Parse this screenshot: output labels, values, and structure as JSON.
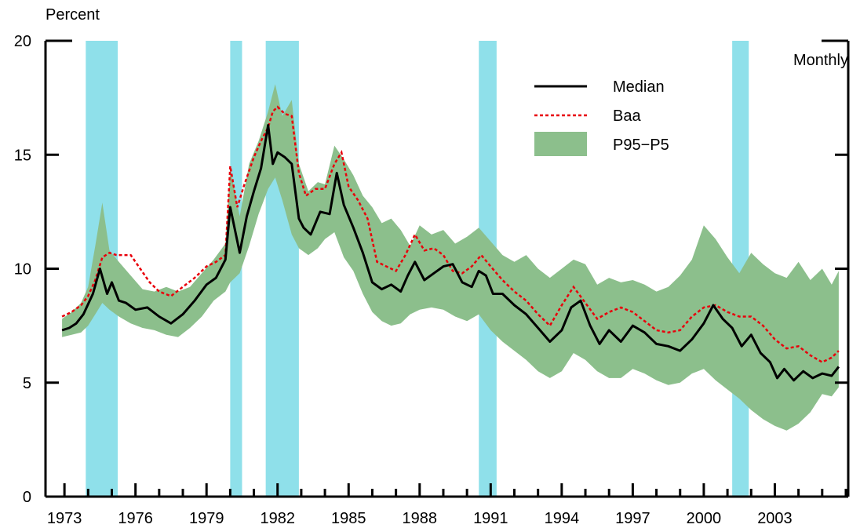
{
  "chart_data": {
    "type": "line",
    "y_unit_label": "Percent",
    "frequency_label": "Monthly",
    "xlim": [
      1972.2,
      2006.1
    ],
    "ylim": [
      0,
      20
    ],
    "y_ticks": [
      0,
      5,
      10,
      15,
      20
    ],
    "x_ticks": [
      1973,
      1976,
      1979,
      1982,
      1985,
      1988,
      1991,
      1994,
      1997,
      2000,
      2003
    ],
    "grid": false,
    "legend_position": "top-right",
    "colors": {
      "median": "#000000",
      "baa": "#e8000b",
      "band": "#8cbf8c",
      "recession": "#8fe0ea"
    },
    "recessions": [
      [
        1973.9,
        1975.25
      ],
      [
        1980.0,
        1980.5
      ],
      [
        1981.5,
        1982.9
      ],
      [
        1990.5,
        1991.25
      ],
      [
        2001.2,
        2001.9
      ]
    ],
    "series": [
      {
        "name": "Median",
        "style": "solid",
        "x": [
          1972.9,
          1973.2,
          1973.5,
          1973.8,
          1974.2,
          1974.5,
          1974.8,
          1975.0,
          1975.3,
          1975.6,
          1976.0,
          1976.5,
          1977.0,
          1977.5,
          1978.0,
          1978.5,
          1979.0,
          1979.4,
          1979.8,
          1980.0,
          1980.4,
          1980.7,
          1981.0,
          1981.3,
          1981.6,
          1981.8,
          1982.0,
          1982.3,
          1982.6,
          1982.9,
          1983.1,
          1983.4,
          1983.8,
          1984.2,
          1984.5,
          1984.8,
          1985.2,
          1985.6,
          1986.0,
          1986.4,
          1986.8,
          1987.2,
          1987.5,
          1987.8,
          1988.2,
          1988.6,
          1989.0,
          1989.4,
          1989.8,
          1990.2,
          1990.5,
          1990.8,
          1991.1,
          1991.5,
          1992.0,
          1992.5,
          1993.0,
          1993.5,
          1994.0,
          1994.4,
          1994.8,
          1995.2,
          1995.6,
          1996.0,
          1996.5,
          1997.0,
          1997.5,
          1998.0,
          1998.5,
          1999.0,
          1999.5,
          2000.0,
          2000.4,
          2000.8,
          2001.2,
          2001.6,
          2002.0,
          2002.4,
          2002.8,
          2003.1,
          2003.4,
          2003.8,
          2004.2,
          2004.6,
          2005.0,
          2005.4,
          2005.7
        ],
        "values": [
          7.3,
          7.4,
          7.6,
          8.0,
          8.9,
          10.0,
          8.9,
          9.4,
          8.6,
          8.5,
          8.2,
          8.3,
          7.9,
          7.6,
          8.0,
          8.6,
          9.3,
          9.6,
          10.4,
          12.7,
          10.7,
          12.3,
          13.4,
          14.4,
          16.3,
          14.6,
          15.1,
          14.9,
          14.6,
          12.2,
          11.8,
          11.5,
          12.5,
          12.4,
          14.2,
          12.8,
          11.8,
          10.7,
          9.4,
          9.1,
          9.3,
          9.0,
          9.7,
          10.3,
          9.5,
          9.8,
          10.1,
          10.2,
          9.4,
          9.2,
          9.9,
          9.7,
          8.9,
          8.9,
          8.4,
          8.0,
          7.4,
          6.8,
          7.3,
          8.3,
          8.6,
          7.5,
          6.7,
          7.3,
          6.8,
          7.5,
          7.2,
          6.7,
          6.6,
          6.4,
          6.9,
          7.6,
          8.4,
          7.8,
          7.4,
          6.6,
          7.1,
          6.3,
          5.9,
          5.2,
          5.6,
          5.1,
          5.5,
          5.2,
          5.4,
          5.3,
          5.7
        ]
      },
      {
        "name": "Baa",
        "style": "dotted",
        "x": [
          1972.9,
          1973.3,
          1973.7,
          1974.0,
          1974.3,
          1974.6,
          1974.9,
          1975.2,
          1975.5,
          1975.8,
          1976.2,
          1976.6,
          1977.0,
          1977.5,
          1978.0,
          1978.5,
          1979.0,
          1979.4,
          1979.8,
          1980.0,
          1980.3,
          1980.6,
          1981.0,
          1981.3,
          1981.6,
          1981.8,
          1982.0,
          1982.3,
          1982.6,
          1982.9,
          1983.2,
          1983.6,
          1984.0,
          1984.4,
          1984.7,
          1985.0,
          1985.4,
          1985.8,
          1986.2,
          1986.6,
          1987.0,
          1987.4,
          1987.8,
          1988.2,
          1988.6,
          1989.0,
          1989.4,
          1989.8,
          1990.2,
          1990.6,
          1991.0,
          1991.5,
          1992.0,
          1992.5,
          1993.0,
          1993.5,
          1994.0,
          1994.5,
          1995.0,
          1995.5,
          1996.0,
          1996.5,
          1997.0,
          1997.5,
          1998.0,
          1998.5,
          1999.0,
          1999.5,
          2000.0,
          2000.5,
          2001.0,
          2001.5,
          2002.0,
          2002.5,
          2003.0,
          2003.5,
          2004.0,
          2004.5,
          2005.0,
          2005.4,
          2005.7
        ],
        "values": [
          7.9,
          8.1,
          8.4,
          8.8,
          9.5,
          10.5,
          10.7,
          10.6,
          10.6,
          10.6,
          10.0,
          9.4,
          9.0,
          8.8,
          9.2,
          9.6,
          10.1,
          10.3,
          10.6,
          14.5,
          12.7,
          13.7,
          14.9,
          15.6,
          16.2,
          16.9,
          17.1,
          16.8,
          16.7,
          14.2,
          13.2,
          13.5,
          13.5,
          14.6,
          15.1,
          13.6,
          13.0,
          12.2,
          10.3,
          10.1,
          9.9,
          10.6,
          11.5,
          10.8,
          10.9,
          10.6,
          9.9,
          9.8,
          10.1,
          10.6,
          10.1,
          9.5,
          9.0,
          8.6,
          8.0,
          7.5,
          8.4,
          9.2,
          8.5,
          7.8,
          8.1,
          8.3,
          8.1,
          7.7,
          7.3,
          7.2,
          7.3,
          7.9,
          8.3,
          8.4,
          8.1,
          7.9,
          7.9,
          7.5,
          6.9,
          6.5,
          6.6,
          6.2,
          5.9,
          6.1,
          6.4
        ]
      },
      {
        "name": "P95−P5",
        "style": "band",
        "x": [
          1972.9,
          1973.3,
          1973.7,
          1974.0,
          1974.3,
          1974.6,
          1974.9,
          1975.3,
          1975.8,
          1976.3,
          1976.8,
          1977.3,
          1977.8,
          1978.3,
          1978.8,
          1979.3,
          1979.8,
          1980.0,
          1980.4,
          1980.8,
          1981.2,
          1981.6,
          1981.9,
          1982.2,
          1982.6,
          1982.9,
          1983.3,
          1983.7,
          1984.0,
          1984.4,
          1984.8,
          1985.2,
          1985.6,
          1986.0,
          1986.4,
          1986.8,
          1987.2,
          1987.6,
          1988.0,
          1988.5,
          1989.0,
          1989.5,
          1990.0,
          1990.5,
          1991.0,
          1991.5,
          1992.0,
          1992.5,
          1993.0,
          1993.5,
          1994.0,
          1994.5,
          1995.0,
          1995.5,
          1996.0,
          1996.5,
          1997.0,
          1997.5,
          1998.0,
          1998.5,
          1999.0,
          1999.5,
          2000.0,
          2000.5,
          2001.0,
          2001.5,
          2002.0,
          2002.5,
          2003.0,
          2003.5,
          2004.0,
          2004.5,
          2005.0,
          2005.4,
          2005.7
        ],
        "upper": [
          7.8,
          8.1,
          8.5,
          9.2,
          11.0,
          12.9,
          10.8,
          10.3,
          9.7,
          9.1,
          9.0,
          9.2,
          9.0,
          9.2,
          9.8,
          10.4,
          11.1,
          14.4,
          12.3,
          14.6,
          15.6,
          16.9,
          18.1,
          16.7,
          17.4,
          14.6,
          13.4,
          13.8,
          13.7,
          15.4,
          14.8,
          14.1,
          13.2,
          12.7,
          12.0,
          12.2,
          11.7,
          11.0,
          11.9,
          11.5,
          11.7,
          11.1,
          11.4,
          11.8,
          11.2,
          10.6,
          10.3,
          10.6,
          10.0,
          9.6,
          10.0,
          10.4,
          10.2,
          9.3,
          9.6,
          9.4,
          9.5,
          9.3,
          9.0,
          9.2,
          9.7,
          10.4,
          11.9,
          11.3,
          10.5,
          9.8,
          10.7,
          10.2,
          9.8,
          9.6,
          10.3,
          9.5,
          10.0,
          9.3,
          9.9
        ],
        "lower": [
          7.0,
          7.1,
          7.2,
          7.5,
          8.0,
          8.5,
          8.2,
          7.9,
          7.6,
          7.4,
          7.3,
          7.1,
          7.0,
          7.4,
          7.9,
          8.6,
          9.0,
          9.4,
          9.8,
          11.0,
          12.4,
          13.5,
          14.0,
          13.0,
          11.5,
          10.9,
          10.6,
          10.9,
          11.3,
          11.6,
          10.5,
          9.9,
          8.9,
          8.1,
          7.7,
          7.5,
          7.6,
          8.0,
          8.2,
          8.3,
          8.2,
          7.9,
          7.7,
          8.0,
          7.3,
          6.8,
          6.4,
          6.0,
          5.5,
          5.2,
          5.5,
          6.3,
          6.0,
          5.5,
          5.2,
          5.2,
          5.6,
          5.4,
          5.1,
          4.9,
          5.0,
          5.4,
          5.6,
          5.1,
          4.7,
          4.3,
          3.8,
          3.4,
          3.1,
          2.9,
          3.2,
          3.7,
          4.5,
          4.4,
          4.8
        ]
      }
    ]
  }
}
